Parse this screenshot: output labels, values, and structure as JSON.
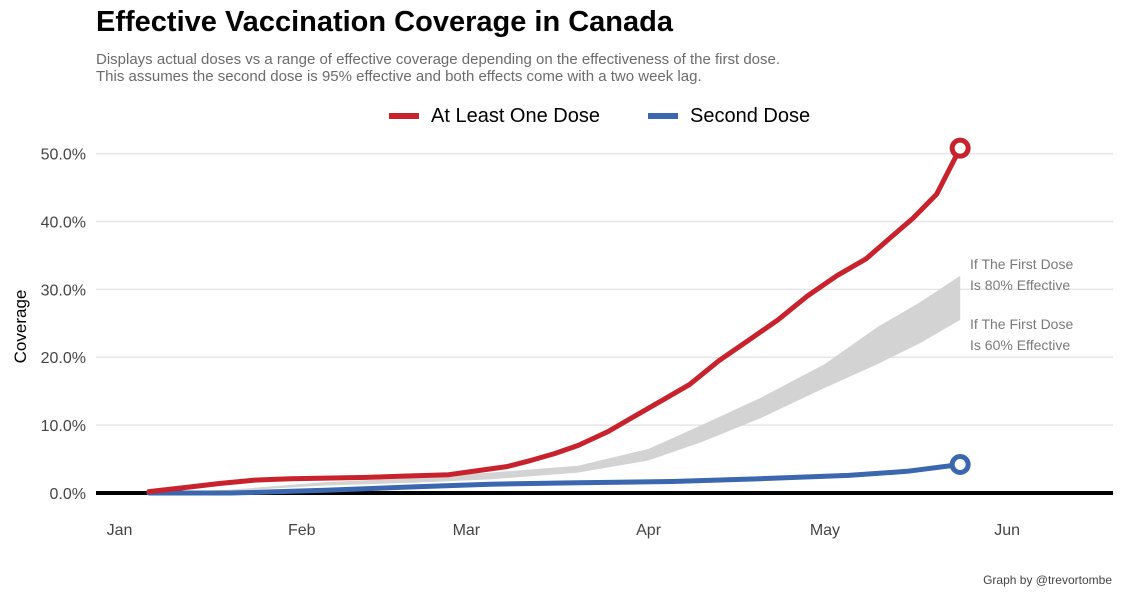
{
  "title": "Effective Vaccination Coverage in Canada",
  "subtitle": [
    "Displays actual doses vs a range of effective coverage depending on the effectiveness of the first dose.",
    "This assumes the second dose is 95% effective and both effects come with a two week lag."
  ],
  "caption": "Graph by @trevortombe",
  "colors": {
    "first": "#c8232c",
    "second": "#3a67ae",
    "band": "#d3d3d3",
    "grid": "#e6e6e6"
  },
  "chart_data": {
    "type": "line",
    "ylabel": "Coverage",
    "xlabel": "",
    "ylim": [
      0,
      0.52
    ],
    "y_ticks": [
      {
        "value": 0.0,
        "label": "0.0%"
      },
      {
        "value": 0.1,
        "label": "10.0%"
      },
      {
        "value": 0.2,
        "label": "20.0%"
      },
      {
        "value": 0.3,
        "label": "30.0%"
      },
      {
        "value": 0.4,
        "label": "40.0%"
      },
      {
        "value": 0.5,
        "label": "50.0%"
      }
    ],
    "xlim": [
      "2020-12-28",
      "2021-06-19"
    ],
    "x_ticks": [
      {
        "value": "2021-01-01",
        "label": "Jan"
      },
      {
        "value": "2021-02-01",
        "label": "Feb"
      },
      {
        "value": "2021-03-01",
        "label": "Mar"
      },
      {
        "value": "2021-04-01",
        "label": "Apr"
      },
      {
        "value": "2021-05-01",
        "label": "May"
      },
      {
        "value": "2021-06-01",
        "label": "Jun"
      }
    ],
    "legend_position": "top",
    "grid": true,
    "series": [
      {
        "name": "At Least One Dose",
        "color": "#c8232c",
        "x": [
          "2021-01-06",
          "2021-01-12",
          "2021-01-18",
          "2021-01-24",
          "2021-01-30",
          "2021-02-05",
          "2021-02-12",
          "2021-02-19",
          "2021-02-26",
          "2021-03-03",
          "2021-03-08",
          "2021-03-12",
          "2021-03-16",
          "2021-03-20",
          "2021-03-25",
          "2021-03-30",
          "2021-04-03",
          "2021-04-08",
          "2021-04-13",
          "2021-04-18",
          "2021-04-23",
          "2021-04-28",
          "2021-05-03",
          "2021-05-08",
          "2021-05-12",
          "2021-05-16",
          "2021-05-20",
          "2021-05-24"
        ],
        "values": [
          0.002,
          0.008,
          0.014,
          0.019,
          0.021,
          0.022,
          0.023,
          0.025,
          0.027,
          0.033,
          0.039,
          0.048,
          0.058,
          0.07,
          0.09,
          0.115,
          0.135,
          0.16,
          0.195,
          0.225,
          0.255,
          0.29,
          0.32,
          0.345,
          0.375,
          0.405,
          0.44,
          0.508
        ],
        "end_marker": true
      },
      {
        "name": "Second Dose",
        "color": "#3a67ae",
        "x": [
          "2021-01-06",
          "2021-01-20",
          "2021-02-05",
          "2021-02-20",
          "2021-03-05",
          "2021-03-20",
          "2021-04-05",
          "2021-04-20",
          "2021-05-05",
          "2021-05-15",
          "2021-05-24"
        ],
        "values": [
          0.0,
          0.0,
          0.004,
          0.009,
          0.013,
          0.015,
          0.017,
          0.021,
          0.026,
          0.032,
          0.042
        ],
        "end_marker": true
      }
    ],
    "band": {
      "x": [
        "2021-01-06",
        "2021-01-20",
        "2021-02-05",
        "2021-02-20",
        "2021-03-05",
        "2021-03-20",
        "2021-04-01",
        "2021-04-10",
        "2021-04-20",
        "2021-05-01",
        "2021-05-10",
        "2021-05-17",
        "2021-05-24"
      ],
      "lower": [
        0.0,
        0.003,
        0.011,
        0.015,
        0.02,
        0.03,
        0.048,
        0.075,
        0.11,
        0.155,
        0.19,
        0.22,
        0.255
      ],
      "upper": [
        0.0,
        0.005,
        0.016,
        0.022,
        0.03,
        0.04,
        0.065,
        0.1,
        0.14,
        0.19,
        0.245,
        0.28,
        0.32
      ]
    },
    "annotations": [
      {
        "text": [
          "If The First Dose",
          "Is 80% Effective"
        ],
        "x": "2021-05-25",
        "y": 0.32
      },
      {
        "text": [
          "If The First Dose",
          "Is 60% Effective"
        ],
        "x": "2021-05-25",
        "y": 0.255
      }
    ]
  }
}
